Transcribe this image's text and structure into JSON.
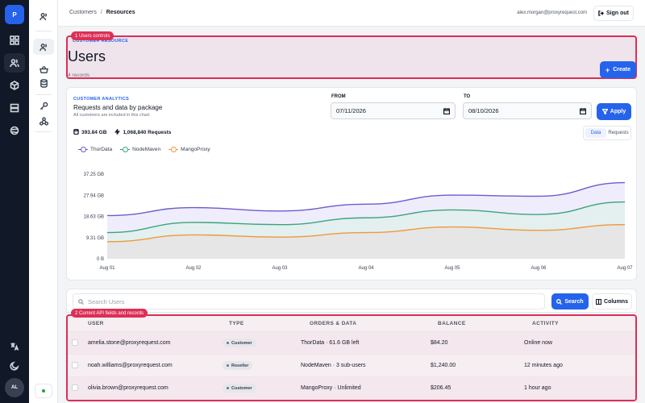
{
  "rail": {
    "logo": "P",
    "avatar": "AL",
    "icons": [
      "dashboard-icon",
      "users-icon",
      "box-icon",
      "server-icon",
      "globe-icon",
      "translate-icon",
      "moon-icon"
    ]
  },
  "subnav": {
    "icons": [
      "users-icon",
      "users-icon",
      "basket-icon",
      "database-icon",
      "key-icon",
      "webhook-icon"
    ]
  },
  "header": {
    "crumb_parent": "Customers",
    "crumb_separator": "/",
    "crumb_current": "Resources",
    "email": "alex.morgan@proxyrequest.com",
    "signout_label": "Sign out"
  },
  "hero": {
    "kicker": "CUSTOMER RESOURCE",
    "title": "Users",
    "records": "4 records",
    "tag": "1 Users controls",
    "create_label": "Create"
  },
  "analytics": {
    "kicker": "CUSTOMER ANALYTICS",
    "title": "Requests and data by package",
    "note": "All customers are included in this chart.",
    "from_label": "FROM",
    "from_value": "07/11/2026",
    "to_label": "TO",
    "to_value": "08/10/2026",
    "apply_label": "Apply",
    "total_data": "393.84 GB",
    "total_requests": "1,068,840 Requests",
    "toggle_data": "Data",
    "toggle_requests": "Requests"
  },
  "chart_data": {
    "type": "area",
    "x": [
      "Aug 01",
      "Aug 02",
      "Aug 03",
      "Aug 04",
      "Aug 05",
      "Aug 06",
      "Aug 07"
    ],
    "yticks": [
      "37.25 GB",
      "27.94 GB",
      "18.63 GB",
      "9.31 GB",
      "0 B"
    ],
    "ylim": [
      0,
      37.25
    ],
    "ylabel_unit": "GB",
    "colors": {
      "ThorData": "#6d5bd0",
      "NodeMaven": "#3aa57a",
      "MangoProxy": "#ee9a3a"
    },
    "series": [
      {
        "name": "ThorData",
        "values": [
          19.0,
          22.5,
          21.0,
          24.0,
          28.0,
          27.5,
          33.5
        ]
      },
      {
        "name": "NodeMaven",
        "values": [
          11.5,
          16.0,
          15.0,
          18.0,
          21.5,
          19.5,
          25.0
        ]
      },
      {
        "name": "MangoProxy",
        "values": [
          7.5,
          10.5,
          9.5,
          11.5,
          14.0,
          12.5,
          15.0
        ]
      }
    ],
    "legend": "top-left",
    "grid": false
  },
  "toolbar": {
    "search_placeholder": "Search Users",
    "search_label": "Search",
    "columns_label": "Columns"
  },
  "table": {
    "tag": "2 Current API fields and records",
    "headers": [
      "USER",
      "TYPE",
      "ORDERS & DATA",
      "BALANCE",
      "ACTIVITY"
    ],
    "rows": [
      {
        "user": "amelia.stone@proxyrequest.com",
        "type": "Customer",
        "orders": "ThorData · 61.6 GB left",
        "balance": "$84.20",
        "activity": "Online now"
      },
      {
        "user": "noah.williams@proxyrequest.com",
        "type": "Reseller",
        "orders": "NodeMaven · 3 sub-users",
        "balance": "$1,240.00",
        "activity": "12 minutes ago"
      },
      {
        "user": "olivia.brown@proxyrequest.com",
        "type": "Customer",
        "orders": "MangoProxy · Unlimited",
        "balance": "$206.45",
        "activity": "1 hour ago"
      }
    ]
  }
}
